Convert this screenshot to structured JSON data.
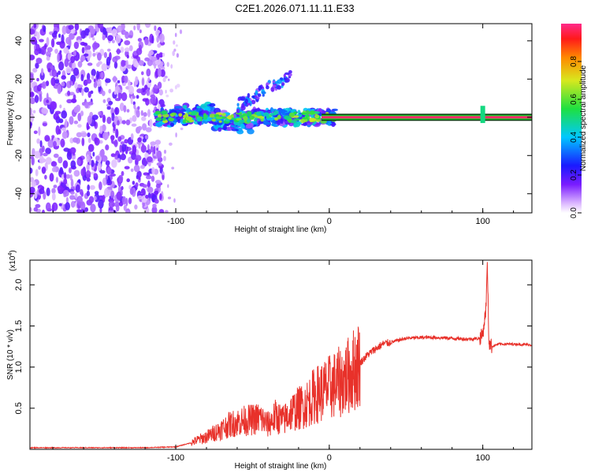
{
  "title": "C2E1.2026.071.11.11.E33",
  "colors": {
    "line": "#e8312a",
    "band_mid": "#ff2a6a",
    "band_edge": "#1ec830",
    "frame": "#000000"
  },
  "chart_data": [
    {
      "type": "heatmap",
      "title": "C2E1.2026.071.11.11.E33",
      "xlabel": "Height of straight line (km)",
      "ylabel": "Frequency (Hz)",
      "xlim": [
        -195,
        132
      ],
      "ylim": [
        -50,
        49
      ],
      "xticks": [
        -100,
        0,
        100
      ],
      "yticks": [
        -40,
        -20,
        0,
        20,
        40
      ],
      "xtick_labels": [
        "-100",
        "0",
        "100"
      ],
      "ytick_labels": [
        "-40",
        "-20",
        "0",
        "20",
        "40"
      ],
      "colorbar": {
        "label": "Normalized spectral amplitude",
        "range": [
          0,
          1
        ],
        "ticks": [
          0.0,
          0.2,
          0.4,
          0.6,
          0.8
        ],
        "tick_labels": [
          "0.0",
          "0.2",
          "0.4",
          "0.6",
          "0.8"
        ]
      },
      "features": [
        {
          "name": "noise_region",
          "x_range": [
            -195,
            -108
          ],
          "freq_range": [
            -50,
            49
          ],
          "amplitude": 0.15
        },
        {
          "name": "scatter_band",
          "x_range": [
            -113,
            5
          ],
          "freq_center": 0,
          "amplitude": 0.45
        },
        {
          "name": "upward_branch",
          "x_range": [
            -60,
            -25
          ],
          "freq_range": [
            5,
            25
          ],
          "amplitude": 0.3
        },
        {
          "name": "carrier_line",
          "x_range": [
            -5,
            132
          ],
          "freq_center": 0,
          "amplitude": 0.95
        },
        {
          "name": "spike",
          "x": 100,
          "freq_range": [
            -3,
            6
          ],
          "amplitude": 0.5
        }
      ]
    },
    {
      "type": "line",
      "xlabel": "Height of straight line (km)",
      "ylabel": "SNR (10 * v/v)",
      "y_multiplier": "(x10",
      "y_multiplier_exp": "4",
      "y_multiplier_close": ")",
      "xlim": [
        -195,
        132
      ],
      "ylim": [
        0,
        2.3
      ],
      "xticks": [
        -100,
        0,
        100
      ],
      "yticks": [
        0.5,
        1.0,
        1.5,
        2.0
      ],
      "xtick_labels": [
        "-100",
        "0",
        "100"
      ],
      "ytick_labels": [
        "0.5",
        "1.0",
        "1.5",
        "2.0"
      ],
      "series": [
        {
          "name": "SNR",
          "x": [
            -195,
            -160,
            -120,
            -100,
            -90,
            -85,
            -80,
            -75,
            -70,
            -65,
            -60,
            -55,
            -50,
            -45,
            -40,
            -35,
            -30,
            -25,
            -20,
            -15,
            -10,
            -5,
            0,
            5,
            10,
            15,
            20,
            25,
            30,
            35,
            40,
            50,
            60,
            70,
            80,
            90,
            98,
            100,
            102,
            103,
            104,
            106,
            110,
            120,
            132
          ],
          "y": [
            0.02,
            0.02,
            0.02,
            0.03,
            0.08,
            0.12,
            0.15,
            0.2,
            0.25,
            0.3,
            0.33,
            0.35,
            0.36,
            0.38,
            0.3,
            0.4,
            0.35,
            0.45,
            0.5,
            0.55,
            0.65,
            0.7,
            0.75,
            0.8,
            0.85,
            0.95,
            1.05,
            1.15,
            1.22,
            1.28,
            1.3,
            1.35,
            1.36,
            1.36,
            1.35,
            1.34,
            1.35,
            1.4,
            1.7,
            2.25,
            1.3,
            1.25,
            1.28,
            1.28,
            1.27
          ]
        }
      ]
    }
  ]
}
